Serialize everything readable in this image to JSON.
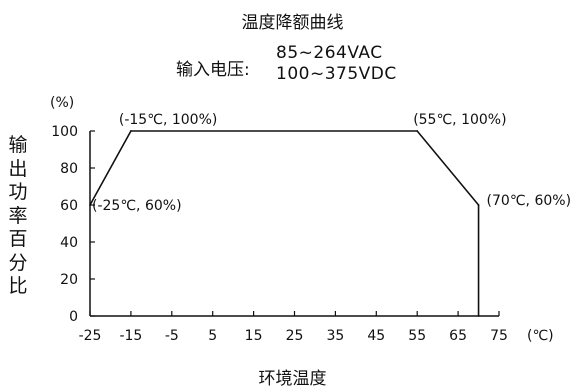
{
  "chart_data": {
    "type": "line",
    "title": "温度降额曲线",
    "subtitle": {
      "label": "输入电压:",
      "values": [
        "85~264VAC",
        "100~375VDC"
      ]
    },
    "ylabel": "输出功率百分比",
    "xlabel": "环境温度",
    "y_unit": "(%)",
    "x_unit": "(℃)",
    "xlim": [
      -25,
      75
    ],
    "ylim": [
      0,
      100
    ],
    "x_ticks": [
      -25,
      -15,
      -5,
      5,
      15,
      25,
      35,
      45,
      55,
      65,
      75
    ],
    "y_ticks": [
      0,
      20,
      40,
      60,
      80,
      100
    ],
    "grid": false,
    "series": [
      {
        "x": [
          -25,
          -15,
          55,
          70,
          70
        ],
        "y": [
          60,
          100,
          100,
          60,
          0
        ]
      }
    ],
    "annotations": [
      {
        "text": "(-15℃, 100%)",
        "x": -15,
        "y": 100
      },
      {
        "text": "(55℃, 100%)",
        "x": 55,
        "y": 100
      },
      {
        "text": "(-25℃, 60%)",
        "x": -25,
        "y": 60
      },
      {
        "text": "(70℃, 60%)",
        "x": 70,
        "y": 60
      }
    ],
    "colors": {
      "line": "#111111",
      "axis": "#111111"
    }
  }
}
